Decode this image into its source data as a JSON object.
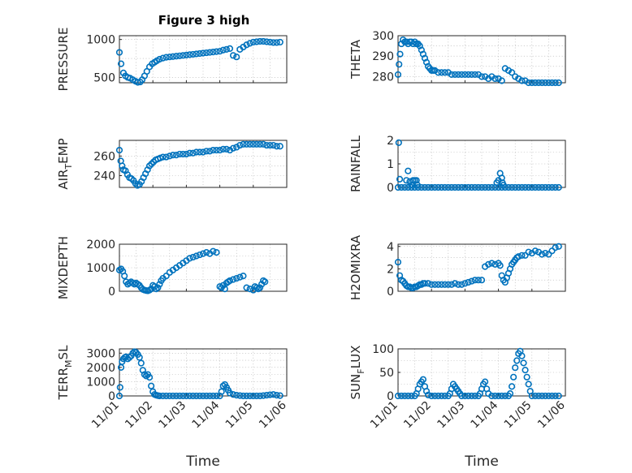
{
  "figure": {
    "title": "Figure 3 high"
  },
  "chart_data": [
    {
      "type": "scatter",
      "title": "Figure 3 high",
      "ylabel": "PRESSURE",
      "ylabel_sub": "",
      "xlim": [
        0,
        5
      ],
      "ylim": [
        430,
        1050
      ],
      "yticks": [
        500,
        1000
      ],
      "xticklabels": [],
      "xlabel": "",
      "marker": "circle",
      "color": "#0072bd",
      "grid": true,
      "x": [
        0.0,
        0.05,
        0.12,
        0.18,
        0.25,
        0.32,
        0.4,
        0.48,
        0.55,
        0.62,
        0.68,
        0.75,
        0.82,
        0.9,
        0.98,
        1.05,
        1.12,
        1.2,
        1.3,
        1.4,
        1.5,
        1.6,
        1.7,
        1.8,
        1.9,
        2.0,
        2.1,
        2.2,
        2.3,
        2.4,
        2.5,
        2.6,
        2.7,
        2.8,
        2.9,
        3.0,
        3.1,
        3.2,
        3.3,
        3.4,
        3.5,
        3.6,
        3.7,
        3.8,
        3.9,
        4.0,
        4.1,
        4.2,
        4.3,
        4.4,
        4.5,
        4.6,
        4.7,
        4.8
      ],
      "y": [
        830,
        680,
        560,
        520,
        500,
        490,
        470,
        450,
        435,
        440,
        470,
        520,
        580,
        640,
        680,
        700,
        720,
        740,
        755,
        765,
        770,
        775,
        780,
        785,
        790,
        795,
        800,
        805,
        810,
        815,
        820,
        825,
        830,
        835,
        840,
        845,
        860,
        870,
        880,
        790,
        770,
        870,
        900,
        930,
        950,
        965,
        970,
        975,
        975,
        970,
        965,
        960,
        960,
        965
      ]
    },
    {
      "type": "scatter",
      "title": "",
      "ylabel": "THETA",
      "ylabel_sub": "",
      "xlim": [
        0,
        5
      ],
      "ylim": [
        277,
        300
      ],
      "yticks": [
        280,
        290,
        300
      ],
      "xticklabels": [],
      "xlabel": "",
      "marker": "circle",
      "color": "#0072bd",
      "grid": true,
      "x": [
        0.0,
        0.03,
        0.06,
        0.1,
        0.15,
        0.2,
        0.25,
        0.3,
        0.35,
        0.4,
        0.45,
        0.5,
        0.55,
        0.6,
        0.65,
        0.7,
        0.75,
        0.8,
        0.85,
        0.9,
        0.95,
        1.0,
        1.05,
        1.1,
        1.2,
        1.3,
        1.4,
        1.5,
        1.6,
        1.7,
        1.8,
        1.9,
        2.0,
        2.1,
        2.2,
        2.3,
        2.4,
        2.5,
        2.6,
        2.7,
        2.8,
        2.9,
        3.0,
        3.1,
        3.2,
        3.3,
        3.4,
        3.5,
        3.6,
        3.7,
        3.8,
        3.9,
        4.0,
        4.1,
        4.2,
        4.3,
        4.4,
        4.5,
        4.6,
        4.7,
        4.8
      ],
      "y": [
        281,
        286,
        291,
        296,
        298,
        297,
        297,
        296,
        297,
        297,
        296,
        297,
        296,
        296,
        295,
        293,
        291,
        289,
        287,
        285,
        284,
        283,
        283,
        283,
        282,
        282,
        282,
        282,
        281,
        281,
        281,
        281,
        281,
        281,
        281,
        281,
        281,
        280,
        280,
        279,
        280,
        279,
        279,
        278,
        284,
        283,
        282,
        280,
        279,
        278,
        278,
        277,
        277,
        277,
        277,
        277,
        277,
        277,
        277,
        277,
        277
      ]
    },
    {
      "type": "scatter",
      "title": "",
      "ylabel": "AIR",
      "ylabel_sub": "T",
      "ylabel_suffix": "EMP",
      "xlim": [
        0,
        5
      ],
      "ylim": [
        228,
        276
      ],
      "yticks": [
        240,
        260
      ],
      "xticklabels": [],
      "xlabel": "",
      "marker": "circle",
      "color": "#0072bd",
      "grid": true,
      "x": [
        0.0,
        0.04,
        0.08,
        0.12,
        0.18,
        0.24,
        0.3,
        0.36,
        0.42,
        0.48,
        0.54,
        0.6,
        0.66,
        0.72,
        0.78,
        0.84,
        0.9,
        0.96,
        1.02,
        1.08,
        1.15,
        1.22,
        1.3,
        1.4,
        1.5,
        1.6,
        1.7,
        1.8,
        1.9,
        2.0,
        2.1,
        2.2,
        2.3,
        2.4,
        2.5,
        2.6,
        2.7,
        2.8,
        2.9,
        3.0,
        3.1,
        3.2,
        3.3,
        3.4,
        3.5,
        3.6,
        3.7,
        3.8,
        3.9,
        4.0,
        4.1,
        4.2,
        4.3,
        4.4,
        4.5,
        4.6,
        4.7,
        4.8
      ],
      "y": [
        266,
        255,
        250,
        246,
        245,
        241,
        238,
        237,
        235,
        232,
        230,
        231,
        234,
        238,
        242,
        246,
        250,
        252,
        254,
        256,
        257,
        258,
        259,
        259,
        260,
        261,
        261,
        262,
        262,
        262,
        263,
        263,
        264,
        264,
        264,
        265,
        265,
        266,
        266,
        266,
        267,
        267,
        266,
        268,
        269,
        271,
        272,
        272,
        272,
        272,
        272,
        272,
        272,
        271,
        271,
        271,
        270,
        270
      ]
    },
    {
      "type": "scatter",
      "title": "",
      "ylabel": "RAINFALL",
      "ylabel_sub": "",
      "xlim": [
        0,
        5
      ],
      "ylim": [
        0,
        2
      ],
      "yticks": [
        0,
        1,
        2
      ],
      "xticklabels": [],
      "xlabel": "",
      "marker": "circle",
      "color": "#0072bd",
      "grid": true,
      "x": [
        0.0,
        0.1,
        0.2,
        0.3,
        0.4,
        0.5,
        0.6,
        0.7,
        0.8,
        0.9,
        1.0,
        1.1,
        1.2,
        1.3,
        1.4,
        1.5,
        1.6,
        1.7,
        1.8,
        1.9,
        2.0,
        2.1,
        2.2,
        2.3,
        2.4,
        2.5,
        2.6,
        2.7,
        2.8,
        2.9,
        3.0,
        3.1,
        3.2,
        3.3,
        3.4,
        3.5,
        3.6,
        3.7,
        3.8,
        3.9,
        4.0,
        4.1,
        4.2,
        4.3,
        4.4,
        4.5,
        4.6,
        4.7,
        4.8,
        0.02,
        0.05,
        0.25,
        0.3,
        0.35,
        0.4,
        0.45,
        0.5,
        0.55,
        0.58,
        2.95,
        3.0,
        3.05,
        3.1,
        3.12,
        3.15
      ],
      "y": [
        0,
        0,
        0,
        0,
        0,
        0,
        0,
        0,
        0,
        0,
        0,
        0,
        0,
        0,
        0,
        0,
        0,
        0,
        0,
        0,
        0,
        0,
        0,
        0,
        0,
        0,
        0,
        0,
        0,
        0,
        0,
        0,
        0,
        0,
        0,
        0,
        0,
        0,
        0,
        0,
        0,
        0,
        0,
        0,
        0,
        0,
        0,
        0,
        0,
        1.9,
        0.35,
        0.3,
        0.7,
        0.25,
        0.1,
        0.3,
        0.3,
        0.3,
        0.1,
        0.2,
        0.3,
        0.6,
        0.4,
        0.2,
        0.1
      ]
    },
    {
      "type": "scatter",
      "title": "",
      "ylabel": "MIXDEPTH",
      "ylabel_sub": "",
      "xlim": [
        0,
        5
      ],
      "ylim": [
        0,
        2000
      ],
      "yticks": [
        0,
        1000,
        2000
      ],
      "xticklabels": [],
      "xlabel": "",
      "marker": "circle",
      "color": "#0072bd",
      "grid": true,
      "x": [
        0.0,
        0.05,
        0.1,
        0.15,
        0.2,
        0.25,
        0.3,
        0.35,
        0.4,
        0.45,
        0.5,
        0.55,
        0.6,
        0.65,
        0.7,
        0.75,
        0.8,
        0.85,
        0.9,
        0.95,
        1.0,
        1.05,
        1.1,
        1.15,
        1.2,
        1.25,
        1.3,
        1.4,
        1.5,
        1.6,
        1.7,
        1.8,
        1.9,
        2.0,
        2.1,
        2.2,
        2.3,
        2.4,
        2.5,
        2.6,
        2.7,
        2.8,
        2.9,
        3.0,
        3.05,
        3.1,
        3.15,
        3.2,
        3.25,
        3.3,
        3.4,
        3.5,
        3.6,
        3.7,
        3.8,
        3.9,
        4.0,
        4.05,
        4.1,
        4.15,
        4.2,
        4.25,
        4.3,
        4.35
      ],
      "y": [
        900,
        950,
        850,
        650,
        400,
        300,
        350,
        400,
        350,
        300,
        350,
        300,
        250,
        150,
        80,
        50,
        30,
        20,
        50,
        100,
        250,
        200,
        100,
        150,
        300,
        450,
        550,
        650,
        800,
        900,
        1000,
        1100,
        1200,
        1300,
        1400,
        1450,
        1500,
        1550,
        1600,
        1650,
        1600,
        1700,
        1650,
        200,
        150,
        250,
        100,
        350,
        400,
        450,
        500,
        550,
        600,
        650,
        150,
        100,
        50,
        200,
        150,
        100,
        150,
        300,
        450,
        400
      ]
    },
    {
      "type": "scatter",
      "title": "",
      "ylabel": "H2OMIXRA",
      "ylabel_sub": "",
      "xlim": [
        0,
        5
      ],
      "ylim": [
        0,
        4.2
      ],
      "yticks": [
        0,
        2,
        4
      ],
      "xticklabels": [],
      "xlabel": "",
      "marker": "circle",
      "color": "#0072bd",
      "grid": true,
      "x": [
        0.0,
        0.05,
        0.1,
        0.15,
        0.2,
        0.25,
        0.3,
        0.35,
        0.4,
        0.45,
        0.5,
        0.55,
        0.6,
        0.65,
        0.7,
        0.75,
        0.8,
        0.9,
        1.0,
        1.1,
        1.2,
        1.3,
        1.4,
        1.5,
        1.6,
        1.7,
        1.8,
        1.9,
        2.0,
        2.1,
        2.2,
        2.3,
        2.4,
        2.5,
        2.6,
        2.7,
        2.8,
        2.9,
        3.0,
        3.05,
        3.1,
        3.15,
        3.2,
        3.25,
        3.3,
        3.35,
        3.4,
        3.45,
        3.5,
        3.55,
        3.6,
        3.7,
        3.8,
        3.9,
        4.0,
        4.1,
        4.2,
        4.3,
        4.4,
        4.5,
        4.6,
        4.7,
        4.8
      ],
      "y": [
        2.6,
        1.4,
        1.0,
        0.9,
        0.7,
        0.5,
        0.4,
        0.4,
        0.3,
        0.3,
        0.4,
        0.4,
        0.5,
        0.6,
        0.6,
        0.7,
        0.7,
        0.7,
        0.6,
        0.6,
        0.6,
        0.6,
        0.6,
        0.6,
        0.6,
        0.7,
        0.6,
        0.6,
        0.7,
        0.8,
        0.9,
        1.0,
        1.0,
        1.0,
        2.2,
        2.4,
        2.5,
        2.4,
        2.5,
        2.3,
        1.4,
        1.0,
        0.8,
        1.2,
        1.6,
        2.0,
        2.4,
        2.6,
        2.8,
        3.0,
        3.1,
        3.2,
        3.2,
        3.5,
        3.4,
        3.6,
        3.5,
        3.3,
        3.4,
        3.3,
        3.6,
        3.9,
        4.0
      ]
    },
    {
      "type": "scatter",
      "title": "",
      "ylabel": "TERR",
      "ylabel_sub": "M",
      "ylabel_suffix": "SL",
      "xlim": [
        0,
        5
      ],
      "ylim": [
        0,
        3300
      ],
      "yticks": [
        0,
        1000,
        2000,
        3000
      ],
      "xticklabels": [
        "11/01",
        "11/02",
        "11/03",
        "11/04",
        "11/05",
        "11/06"
      ],
      "xlabel": "Time",
      "marker": "circle",
      "color": "#0072bd",
      "grid": true,
      "x": [
        0.0,
        0.02,
        0.05,
        0.08,
        0.12,
        0.16,
        0.2,
        0.25,
        0.3,
        0.35,
        0.4,
        0.45,
        0.5,
        0.55,
        0.6,
        0.65,
        0.7,
        0.75,
        0.8,
        0.85,
        0.9,
        0.95,
        1.0,
        1.05,
        1.1,
        1.15,
        1.2,
        1.3,
        1.4,
        1.5,
        1.6,
        1.7,
        1.8,
        1.9,
        2.0,
        2.1,
        2.2,
        2.3,
        2.4,
        2.5,
        2.6,
        2.7,
        2.8,
        2.9,
        3.0,
        3.05,
        3.1,
        3.15,
        3.2,
        3.25,
        3.3,
        3.4,
        3.5,
        3.6,
        3.7,
        3.8,
        3.9,
        4.0,
        4.1,
        4.2,
        4.3,
        4.4,
        4.5,
        4.6,
        4.7,
        4.8
      ],
      "y": [
        0,
        600,
        2000,
        2400,
        2600,
        2700,
        2750,
        2600,
        2700,
        2800,
        3000,
        3100,
        3050,
        2900,
        2700,
        2300,
        1800,
        1500,
        1400,
        1500,
        1300,
        700,
        300,
        100,
        50,
        20,
        0,
        0,
        0,
        0,
        0,
        0,
        0,
        0,
        0,
        0,
        0,
        0,
        0,
        0,
        0,
        0,
        0,
        0,
        0,
        300,
        700,
        800,
        600,
        400,
        200,
        100,
        50,
        20,
        0,
        0,
        0,
        0,
        0,
        0,
        20,
        50,
        80,
        100,
        50,
        20
      ]
    },
    {
      "type": "scatter",
      "title": "",
      "ylabel": "SUN",
      "ylabel_sub": "F",
      "ylabel_suffix": "LUX",
      "xlim": [
        0,
        5
      ],
      "ylim": [
        0,
        100
      ],
      "yticks": [
        0,
        50,
        100
      ],
      "xticklabels": [
        "11/01",
        "11/02",
        "11/03",
        "11/04",
        "11/05",
        "11/06"
      ],
      "xlabel": "Time",
      "marker": "circle",
      "color": "#0072bd",
      "grid": true,
      "x": [
        0.0,
        0.1,
        0.2,
        0.3,
        0.4,
        0.5,
        0.55,
        0.6,
        0.65,
        0.7,
        0.75,
        0.8,
        0.85,
        0.9,
        1.0,
        1.1,
        1.2,
        1.3,
        1.4,
        1.5,
        1.55,
        1.6,
        1.65,
        1.7,
        1.75,
        1.8,
        1.85,
        1.9,
        2.0,
        2.1,
        2.2,
        2.3,
        2.4,
        2.45,
        2.5,
        2.55,
        2.6,
        2.65,
        2.7,
        2.8,
        2.9,
        3.0,
        3.1,
        3.2,
        3.3,
        3.35,
        3.4,
        3.45,
        3.5,
        3.55,
        3.6,
        3.65,
        3.7,
        3.75,
        3.8,
        3.85,
        3.9,
        3.95,
        4.0,
        4.1,
        4.2,
        4.3,
        4.4,
        4.5,
        4.6,
        4.7,
        4.8
      ],
      "y": [
        0,
        0,
        0,
        0,
        0,
        0,
        5,
        15,
        25,
        30,
        35,
        20,
        10,
        2,
        0,
        0,
        0,
        0,
        0,
        0,
        5,
        15,
        25,
        20,
        15,
        10,
        5,
        0,
        0,
        0,
        0,
        0,
        0,
        5,
        15,
        25,
        30,
        15,
        5,
        0,
        0,
        0,
        0,
        0,
        0,
        5,
        20,
        40,
        60,
        75,
        90,
        95,
        85,
        70,
        55,
        40,
        25,
        10,
        0,
        0,
        0,
        0,
        0,
        0,
        0,
        0,
        0
      ]
    }
  ]
}
